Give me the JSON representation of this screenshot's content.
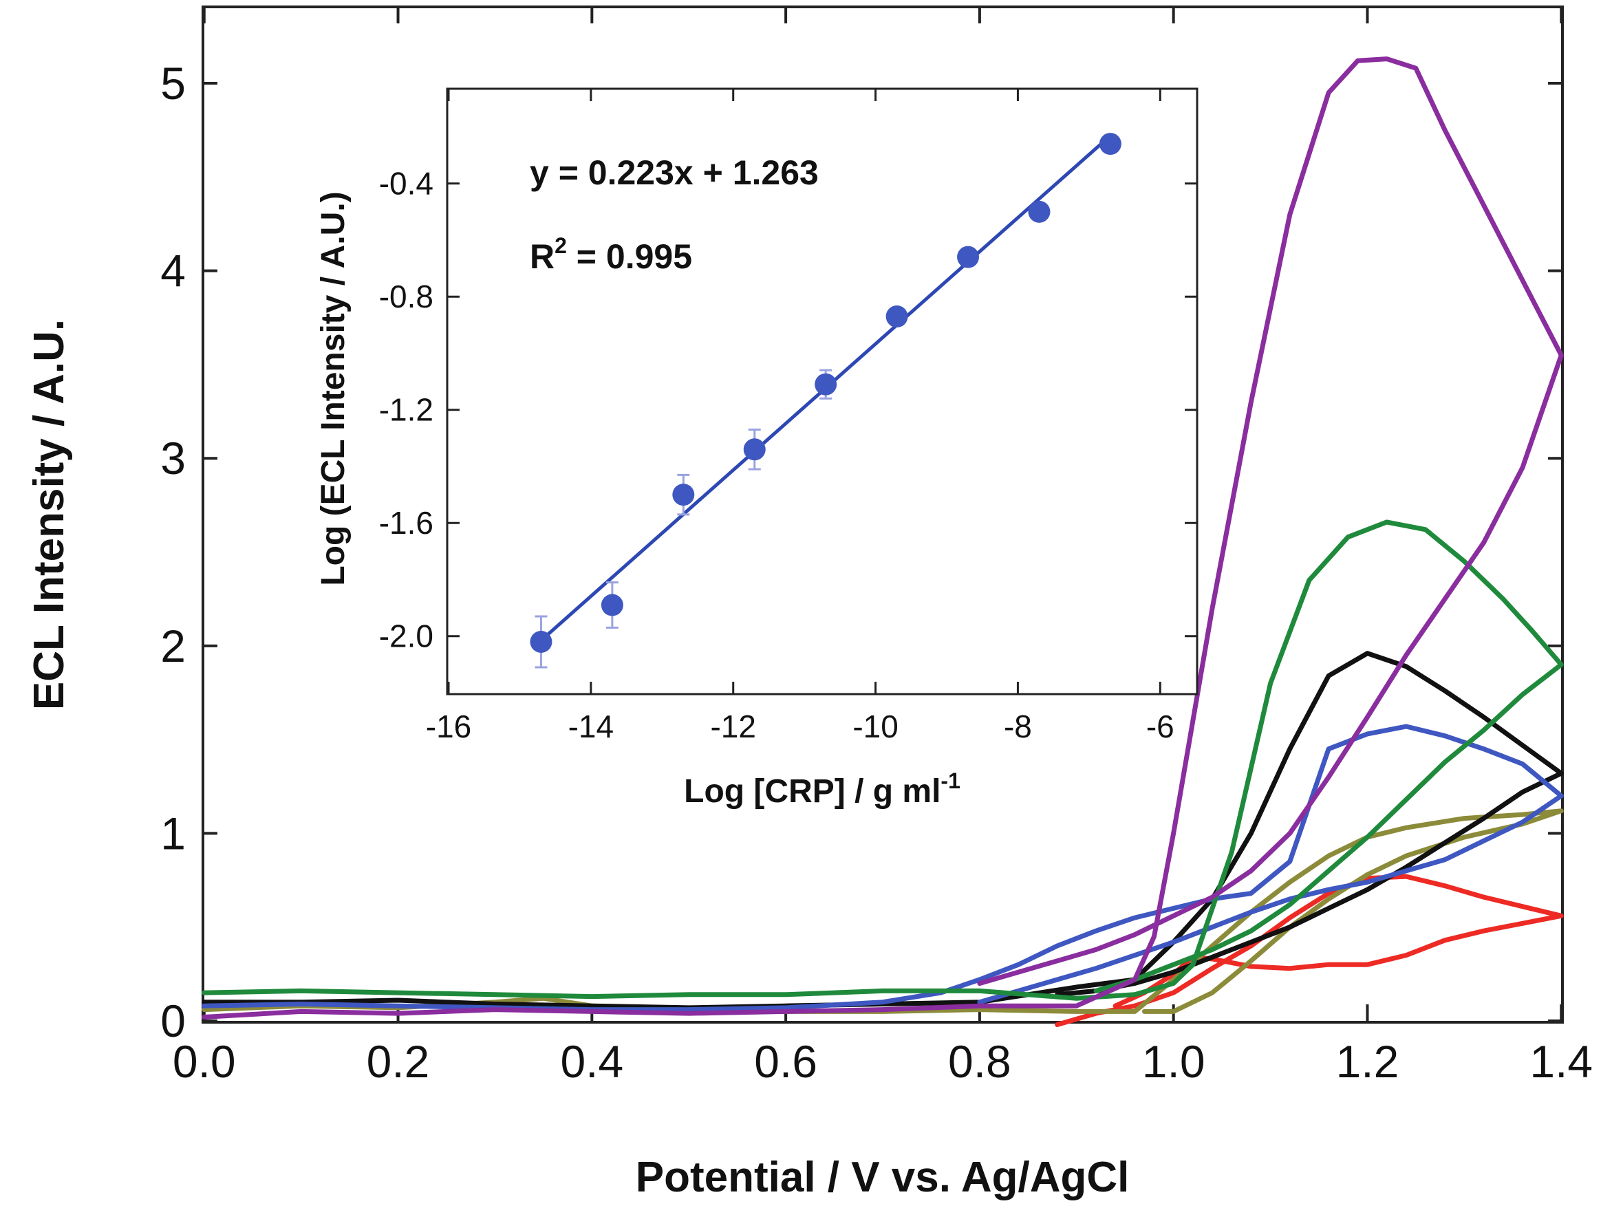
{
  "chart_data": [
    {
      "type": "line",
      "title": "",
      "xlabel": "Potential / V vs. Ag/AgCl",
      "ylabel": "ECL Intensity / A.U.",
      "xlim": [
        0.0,
        1.4
      ],
      "ylim": [
        0,
        5.4
      ],
      "x_ticks": [
        "0.0",
        "0.2",
        "0.4",
        "0.6",
        "0.8",
        "1.0",
        "1.2",
        "1.4"
      ],
      "y_ticks": [
        "0",
        "1",
        "2",
        "3",
        "4",
        "5"
      ],
      "grid": false,
      "legend": "none",
      "series": [
        {
          "name": "red",
          "color": "#ee2a24",
          "points": [
            [
              0.88,
              -0.05
            ],
            [
              0.92,
              0.04
            ],
            [
              0.96,
              0.08
            ],
            [
              1.0,
              0.15
            ],
            [
              1.04,
              0.28
            ],
            [
              1.08,
              0.4
            ],
            [
              1.12,
              0.55
            ],
            [
              1.16,
              0.68
            ],
            [
              1.2,
              0.76
            ],
            [
              1.24,
              0.77
            ],
            [
              1.28,
              0.72
            ],
            [
              1.32,
              0.66
            ],
            [
              1.36,
              0.61
            ],
            [
              1.4,
              0.56
            ],
            [
              1.36,
              0.52
            ],
            [
              1.32,
              0.48
            ],
            [
              1.28,
              0.43
            ],
            [
              1.24,
              0.35
            ],
            [
              1.2,
              0.3
            ],
            [
              1.16,
              0.3
            ],
            [
              1.12,
              0.28
            ],
            [
              1.08,
              0.29
            ],
            [
              1.04,
              0.33
            ],
            [
              1.02,
              0.34
            ],
            [
              1.0,
              0.25
            ],
            [
              0.97,
              0.15
            ],
            [
              0.94,
              0.08
            ]
          ]
        },
        {
          "name": "olive",
          "color": "#8c8b3a",
          "points": [
            [
              0.0,
              0.06
            ],
            [
              0.1,
              0.08
            ],
            [
              0.2,
              0.07
            ],
            [
              0.3,
              0.1
            ],
            [
              0.35,
              0.12
            ],
            [
              0.4,
              0.08
            ],
            [
              0.5,
              0.06
            ],
            [
              0.6,
              0.05
            ],
            [
              0.7,
              0.05
            ],
            [
              0.8,
              0.06
            ],
            [
              0.9,
              0.05
            ],
            [
              0.96,
              0.05
            ],
            [
              1.0,
              0.22
            ],
            [
              1.04,
              0.4
            ],
            [
              1.08,
              0.58
            ],
            [
              1.12,
              0.74
            ],
            [
              1.16,
              0.88
            ],
            [
              1.2,
              0.98
            ],
            [
              1.24,
              1.03
            ],
            [
              1.3,
              1.08
            ],
            [
              1.36,
              1.1
            ],
            [
              1.4,
              1.12
            ],
            [
              1.36,
              1.05
            ],
            [
              1.3,
              0.98
            ],
            [
              1.24,
              0.88
            ],
            [
              1.2,
              0.78
            ],
            [
              1.16,
              0.65
            ],
            [
              1.12,
              0.5
            ],
            [
              1.08,
              0.32
            ],
            [
              1.04,
              0.15
            ],
            [
              1.0,
              0.05
            ],
            [
              0.97,
              0.05
            ]
          ]
        },
        {
          "name": "black",
          "color": "#111111",
          "points": [
            [
              0.0,
              0.1
            ],
            [
              0.1,
              0.1
            ],
            [
              0.2,
              0.11
            ],
            [
              0.3,
              0.09
            ],
            [
              0.4,
              0.08
            ],
            [
              0.5,
              0.07
            ],
            [
              0.6,
              0.08
            ],
            [
              0.7,
              0.09
            ],
            [
              0.8,
              0.1
            ],
            [
              0.9,
              0.18
            ],
            [
              0.96,
              0.22
            ],
            [
              1.0,
              0.42
            ],
            [
              1.04,
              0.65
            ],
            [
              1.08,
              1.0
            ],
            [
              1.12,
              1.45
            ],
            [
              1.16,
              1.84
            ],
            [
              1.2,
              1.96
            ],
            [
              1.24,
              1.89
            ],
            [
              1.28,
              1.76
            ],
            [
              1.32,
              1.62
            ],
            [
              1.36,
              1.47
            ],
            [
              1.4,
              1.32
            ],
            [
              1.36,
              1.22
            ],
            [
              1.32,
              1.08
            ],
            [
              1.28,
              0.95
            ],
            [
              1.24,
              0.82
            ],
            [
              1.2,
              0.7
            ],
            [
              1.16,
              0.6
            ],
            [
              1.12,
              0.5
            ],
            [
              1.08,
              0.42
            ],
            [
              1.04,
              0.34
            ],
            [
              1.0,
              0.26
            ],
            [
              0.96,
              0.2
            ],
            [
              0.92,
              0.16
            ],
            [
              0.88,
              0.14
            ]
          ]
        },
        {
          "name": "blue",
          "color": "#3f57c1",
          "points": [
            [
              0.0,
              0.08
            ],
            [
              0.1,
              0.09
            ],
            [
              0.2,
              0.08
            ],
            [
              0.3,
              0.07
            ],
            [
              0.4,
              0.06
            ],
            [
              0.5,
              0.06
            ],
            [
              0.6,
              0.07
            ],
            [
              0.7,
              0.1
            ],
            [
              0.76,
              0.15
            ],
            [
              0.8,
              0.22
            ],
            [
              0.84,
              0.3
            ],
            [
              0.88,
              0.4
            ],
            [
              0.92,
              0.48
            ],
            [
              0.96,
              0.55
            ],
            [
              1.0,
              0.6
            ],
            [
              1.04,
              0.65
            ],
            [
              1.08,
              0.68
            ],
            [
              1.12,
              0.85
            ],
            [
              1.16,
              1.45
            ],
            [
              1.2,
              1.53
            ],
            [
              1.24,
              1.57
            ],
            [
              1.28,
              1.52
            ],
            [
              1.32,
              1.45
            ],
            [
              1.36,
              1.37
            ],
            [
              1.4,
              1.2
            ],
            [
              1.36,
              1.06
            ],
            [
              1.32,
              0.96
            ],
            [
              1.28,
              0.86
            ],
            [
              1.24,
              0.8
            ],
            [
              1.2,
              0.74
            ],
            [
              1.16,
              0.7
            ],
            [
              1.12,
              0.65
            ],
            [
              1.08,
              0.58
            ],
            [
              1.04,
              0.5
            ],
            [
              1.0,
              0.42
            ],
            [
              0.96,
              0.35
            ],
            [
              0.92,
              0.28
            ],
            [
              0.88,
              0.22
            ],
            [
              0.84,
              0.16
            ],
            [
              0.8,
              0.1
            ]
          ]
        },
        {
          "name": "green",
          "color": "#1f8a3c",
          "points": [
            [
              0.0,
              0.15
            ],
            [
              0.1,
              0.16
            ],
            [
              0.2,
              0.15
            ],
            [
              0.3,
              0.14
            ],
            [
              0.4,
              0.13
            ],
            [
              0.5,
              0.14
            ],
            [
              0.6,
              0.14
            ],
            [
              0.7,
              0.16
            ],
            [
              0.8,
              0.16
            ],
            [
              0.9,
              0.12
            ],
            [
              0.96,
              0.14
            ],
            [
              1.0,
              0.2
            ],
            [
              1.02,
              0.3
            ],
            [
              1.06,
              0.9
            ],
            [
              1.1,
              1.8
            ],
            [
              1.14,
              2.35
            ],
            [
              1.18,
              2.58
            ],
            [
              1.22,
              2.66
            ],
            [
              1.26,
              2.62
            ],
            [
              1.3,
              2.45
            ],
            [
              1.34,
              2.25
            ],
            [
              1.37,
              2.08
            ],
            [
              1.4,
              1.9
            ],
            [
              1.36,
              1.74
            ],
            [
              1.32,
              1.55
            ],
            [
              1.28,
              1.38
            ],
            [
              1.24,
              1.18
            ],
            [
              1.2,
              0.98
            ],
            [
              1.16,
              0.8
            ],
            [
              1.12,
              0.62
            ],
            [
              1.08,
              0.48
            ],
            [
              1.04,
              0.38
            ],
            [
              1.0,
              0.3
            ],
            [
              0.96,
              0.22
            ],
            [
              0.92,
              0.16
            ]
          ]
        },
        {
          "name": "purple",
          "color": "#8a2d9e",
          "points": [
            [
              0.0,
              0.02
            ],
            [
              0.1,
              0.05
            ],
            [
              0.2,
              0.04
            ],
            [
              0.3,
              0.06
            ],
            [
              0.4,
              0.05
            ],
            [
              0.5,
              0.04
            ],
            [
              0.6,
              0.05
            ],
            [
              0.7,
              0.06
            ],
            [
              0.8,
              0.08
            ],
            [
              0.9,
              0.08
            ],
            [
              0.96,
              0.22
            ],
            [
              0.98,
              0.45
            ],
            [
              1.0,
              1.0
            ],
            [
              1.04,
              2.2
            ],
            [
              1.08,
              3.3
            ],
            [
              1.12,
              4.3
            ],
            [
              1.16,
              4.95
            ],
            [
              1.19,
              5.12
            ],
            [
              1.22,
              5.13
            ],
            [
              1.25,
              5.08
            ],
            [
              1.28,
              4.75
            ],
            [
              1.32,
              4.35
            ],
            [
              1.36,
              3.95
            ],
            [
              1.4,
              3.55
            ],
            [
              1.36,
              2.95
            ],
            [
              1.32,
              2.55
            ],
            [
              1.28,
              2.25
            ],
            [
              1.24,
              1.95
            ],
            [
              1.2,
              1.62
            ],
            [
              1.16,
              1.3
            ],
            [
              1.12,
              1.0
            ],
            [
              1.08,
              0.8
            ],
            [
              1.04,
              0.66
            ],
            [
              1.0,
              0.56
            ],
            [
              0.96,
              0.46
            ],
            [
              0.92,
              0.38
            ],
            [
              0.88,
              0.32
            ],
            [
              0.84,
              0.26
            ],
            [
              0.8,
              0.2
            ]
          ]
        }
      ]
    },
    {
      "type": "scatter",
      "title": "",
      "xlabel": "Log [CRP] / g ml",
      "xlabel_sup": "-1",
      "ylabel": "Log (ECL Intensity / A.U.)",
      "xlim": [
        -16,
        -5.5
      ],
      "ylim": [
        -2.2,
        -0.07
      ],
      "x_ticks": [
        "-16",
        "-14",
        "-12",
        "-10",
        "-8",
        "-6"
      ],
      "y_ticks": [
        "-2.0",
        "-1.6",
        "-1.2",
        "-0.8",
        "-0.4"
      ],
      "grid": false,
      "legend": "none",
      "series": [
        {
          "name": "data",
          "color": "#3f57c1",
          "x": [
            -14.7,
            -13.7,
            -12.7,
            -11.7,
            -10.7,
            -9.7,
            -8.7,
            -7.7,
            -6.7
          ],
          "y": [
            -2.02,
            -1.89,
            -1.5,
            -1.34,
            -1.11,
            -0.87,
            -0.66,
            -0.5,
            -0.26
          ],
          "error": [
            0.09,
            0.08,
            0.07,
            0.07,
            0.05,
            0.03,
            0.03,
            0.03,
            0.03
          ]
        }
      ],
      "fit": {
        "slope": 0.223,
        "intercept": 1.263,
        "x_range": [
          -14.7,
          -6.7
        ]
      },
      "annotations": {
        "equation": "y = 0.223x + 1.263",
        "r2_label": "R",
        "r2_sup": "2",
        "r2_value": " = 0.995"
      }
    }
  ]
}
